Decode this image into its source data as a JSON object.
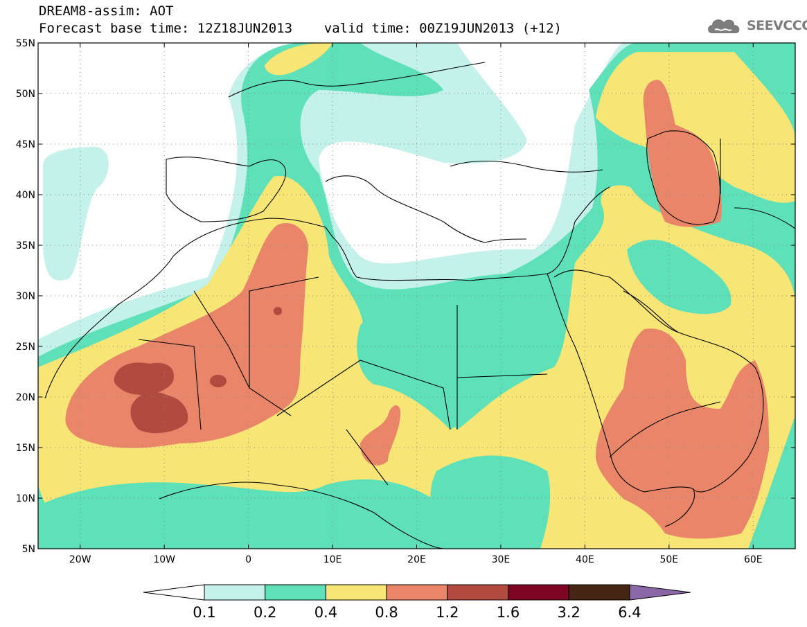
{
  "title": {
    "line1": "DREAM8-assim: AOT",
    "line2": "Forecast base time: 12Z18JUN2013    valid time: 00Z19JUN2013 (+12)"
  },
  "logo": {
    "icon": "cloud-logo-icon",
    "text": "SEEVCCC"
  },
  "map": {
    "lat_labels": [
      "55N",
      "50N",
      "45N",
      "40N",
      "35N",
      "30N",
      "25N",
      "20N",
      "15N",
      "10N",
      "5N"
    ],
    "lat_values": [
      55,
      50,
      45,
      40,
      35,
      30,
      25,
      20,
      15,
      10,
      5
    ],
    "lon_labels": [
      "20W",
      "10W",
      "0",
      "10E",
      "20E",
      "30E",
      "40E",
      "50E",
      "60E"
    ],
    "lon_values": [
      -20,
      -10,
      0,
      10,
      20,
      30,
      40,
      50,
      60
    ],
    "lon_range": [
      -25,
      65
    ],
    "lat_range": [
      5,
      55
    ]
  },
  "colorbar": {
    "labels": [
      "0.1",
      "0.2",
      "0.4",
      "0.8",
      "1.2",
      "1.6",
      "3.2",
      "6.4"
    ],
    "colors": [
      "#ffffff",
      "#c4f1ea",
      "#5ee0b9",
      "#f7e675",
      "#e9866a",
      "#b14a3f",
      "#7d0722",
      "#452513",
      "#8b67a8"
    ]
  }
}
